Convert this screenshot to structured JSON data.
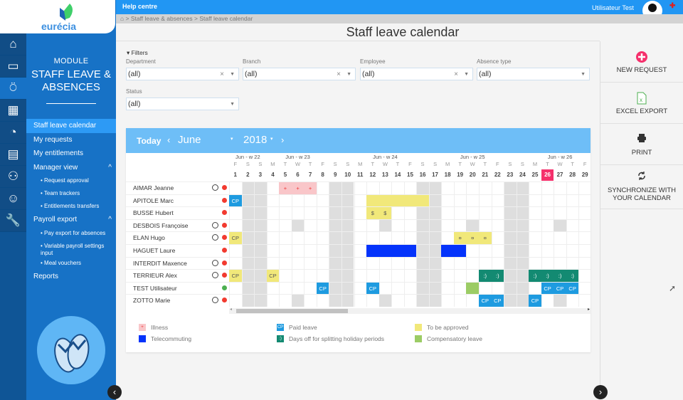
{
  "logo": {
    "text": "eurécia"
  },
  "rail": [
    "home-icon",
    "folder-icon",
    "flip-flops-icon",
    "calculator-icon",
    "speedometer-icon",
    "calendar-icon",
    "people-icon",
    "smiley-icon",
    "wrench-icon"
  ],
  "module": {
    "label": "MODULE",
    "title": "STAFF LEAVE & ABSENCES"
  },
  "menu": [
    {
      "label": "Staff leave calendar",
      "kind": "item",
      "active": true
    },
    {
      "label": "My requests",
      "kind": "item"
    },
    {
      "label": "My entitlements",
      "kind": "item"
    },
    {
      "label": "Manager view",
      "kind": "item",
      "caret": "^"
    },
    {
      "label": "• Request approval",
      "kind": "sub"
    },
    {
      "label": "• Team trackers",
      "kind": "sub"
    },
    {
      "label": "• Entitlements transfers",
      "kind": "sub"
    },
    {
      "label": "Payroll export",
      "kind": "item",
      "caret": "^"
    },
    {
      "label": "• Pay export for absences",
      "kind": "sub"
    },
    {
      "label": "• Variable payroll settings input",
      "kind": "sub"
    },
    {
      "label": "• Meal vouchers",
      "kind": "sub"
    },
    {
      "label": "Reports",
      "kind": "item"
    }
  ],
  "topbar": {
    "help": "Help centre",
    "user": "Utilisateur  Test"
  },
  "breadcrumb": "> Staff leave & absences > Staff leave calendar",
  "page_title": "Staff leave calendar",
  "filters": {
    "toggle": "Filters",
    "fields": [
      {
        "label": "Department",
        "value": "(all)",
        "clear": true
      },
      {
        "label": "Branch",
        "value": "(all)",
        "clear": true
      },
      {
        "label": "Employee",
        "value": "(all)",
        "clear": true
      },
      {
        "label": "Absence type",
        "value": "(all)",
        "clear": false
      },
      {
        "label": "Status",
        "value": "(all)",
        "clear": false
      }
    ]
  },
  "actions": [
    {
      "label": "NEW REQUEST",
      "icon": "plus-circle-icon"
    },
    {
      "label": "EXCEL EXPORT",
      "icon": "excel-icon"
    },
    {
      "label": "PRINT",
      "icon": "printer-icon"
    },
    {
      "label": "SYNCHRONIZE WITH YOUR CALENDAR",
      "icon": "sync-icon"
    }
  ],
  "calendar": {
    "today": "Today",
    "month": "June",
    "year": "2018",
    "current_day": 26,
    "weeks": [
      {
        "label": "Jun - w 22",
        "day": 2
      },
      {
        "label": "Jun - w 23",
        "day": 6
      },
      {
        "label": "Jun - w 24",
        "day": 13
      },
      {
        "label": "Jun - w 25",
        "day": 20
      },
      {
        "label": "Jun - w 26",
        "day": 27
      }
    ],
    "days": [
      "F",
      "S",
      "S",
      "M",
      "T",
      "W",
      "T",
      "F",
      "S",
      "S",
      "M",
      "T",
      "W",
      "T",
      "F",
      "S",
      "S",
      "M",
      "T",
      "W",
      "T",
      "F",
      "S",
      "S",
      "M",
      "T",
      "W",
      "T",
      "F"
    ],
    "weekend_days": [
      2,
      3,
      9,
      10,
      16,
      17,
      23,
      24
    ],
    "employees": [
      {
        "name": "AIMAR Jeanne",
        "clock": true,
        "status": "red",
        "off": [],
        "cells": [
          {
            "d": 5,
            "t": "illness",
            "l": "+"
          },
          {
            "d": 6,
            "t": "illness",
            "l": "+"
          },
          {
            "d": 7,
            "t": "illness",
            "l": "+"
          }
        ]
      },
      {
        "name": "APITOLE Marc",
        "clock": false,
        "status": "red",
        "off": [],
        "cells": [
          {
            "d": 1,
            "t": "paid",
            "l": "CP"
          },
          {
            "d": 12,
            "t": "pending",
            "l": ""
          },
          {
            "d": 13,
            "t": "pending",
            "l": ""
          },
          {
            "d": 14,
            "t": "pending",
            "l": ""
          },
          {
            "d": 15,
            "t": "pending",
            "l": ""
          },
          {
            "d": 16,
            "t": "pending",
            "l": ""
          }
        ]
      },
      {
        "name": "BUSSE Hubert",
        "clock": false,
        "status": "red",
        "off": [],
        "cells": [
          {
            "d": 12,
            "t": "pending",
            "l": "$"
          },
          {
            "d": 13,
            "t": "pending",
            "l": "$"
          }
        ]
      },
      {
        "name": "DESBOIS Françoise",
        "clock": true,
        "status": "red",
        "off": [
          6,
          13,
          20,
          27
        ],
        "cells": []
      },
      {
        "name": "ELAN Hugo",
        "clock": true,
        "status": "red",
        "off": [],
        "cells": [
          {
            "d": 1,
            "t": "pending",
            "l": "CP"
          },
          {
            "d": 19,
            "t": "pending",
            "l": "¤"
          },
          {
            "d": 20,
            "t": "pending",
            "l": "¤"
          },
          {
            "d": 21,
            "t": "pending",
            "l": "¤"
          }
        ]
      },
      {
        "name": "HAGUET Laure",
        "clock": false,
        "status": "red",
        "off": [],
        "cells": [
          {
            "d": 12,
            "t": "tele",
            "l": ""
          },
          {
            "d": 13,
            "t": "tele",
            "l": ""
          },
          {
            "d": 14,
            "t": "tele",
            "l": ""
          },
          {
            "d": 15,
            "t": "tele",
            "l": ""
          },
          {
            "d": 18,
            "t": "tele",
            "l": ""
          },
          {
            "d": 19,
            "t": "tele",
            "l": ""
          }
        ]
      },
      {
        "name": "INTERDIT Maxence",
        "clock": true,
        "status": "red",
        "off": [],
        "cells": []
      },
      {
        "name": "TERRIEUR Alex",
        "clock": true,
        "status": "red",
        "off": [],
        "cells": [
          {
            "d": 1,
            "t": "pending",
            "l": "CP"
          },
          {
            "d": 4,
            "t": "pending",
            "l": "CP"
          },
          {
            "d": 21,
            "t": "split",
            "l": ":)"
          },
          {
            "d": 22,
            "t": "split",
            "l": ":)"
          },
          {
            "d": 25,
            "t": "split",
            "l": ":)"
          },
          {
            "d": 26,
            "t": "split",
            "l": ":)"
          },
          {
            "d": 27,
            "t": "split",
            "l": ":)"
          },
          {
            "d": 28,
            "t": "split",
            "l": ":)"
          }
        ]
      },
      {
        "name": "TEST Utilisateur",
        "clock": false,
        "status": "green",
        "off": [],
        "cells": [
          {
            "d": 8,
            "t": "paid",
            "l": "CP"
          },
          {
            "d": 12,
            "t": "paid",
            "l": "CP"
          },
          {
            "d": 20,
            "t": "comp",
            "l": ""
          },
          {
            "d": 26,
            "t": "paid",
            "l": "CP"
          },
          {
            "d": 27,
            "t": "paid",
            "l": "CP"
          },
          {
            "d": 28,
            "t": "paid",
            "l": "CP"
          }
        ]
      },
      {
        "name": "ZOTTO Marie",
        "clock": true,
        "status": "red",
        "off": [
          6,
          13,
          27
        ],
        "cells": [
          {
            "d": 21,
            "t": "paid",
            "l": "CP"
          },
          {
            "d": 22,
            "t": "paid",
            "l": "CP"
          },
          {
            "d": 25,
            "t": "paid",
            "l": "CP"
          }
        ]
      }
    ]
  },
  "legend": [
    {
      "label": "Illness",
      "t": "illness",
      "sym": "+"
    },
    {
      "label": "Paid leave",
      "t": "paid",
      "sym": "CP"
    },
    {
      "label": "To be approved",
      "t": "pending",
      "sym": ""
    },
    {
      "label": "Telecommuting",
      "t": "tele",
      "sym": ""
    },
    {
      "label": "Days off for splitting holiday periods",
      "t": "split",
      "sym": ":)"
    },
    {
      "label": "Compensatory leave",
      "t": "comp",
      "sym": ""
    }
  ],
  "colors": {
    "illness": "#f9c6c9",
    "paid": "#1e9be0",
    "pending": "#f1e87a",
    "tele": "#0433fb",
    "split": "#138a72",
    "comp": "#9ccc65",
    "weekend": "#dedede",
    "header": "#6ebef7",
    "accent": "#f5306c"
  }
}
